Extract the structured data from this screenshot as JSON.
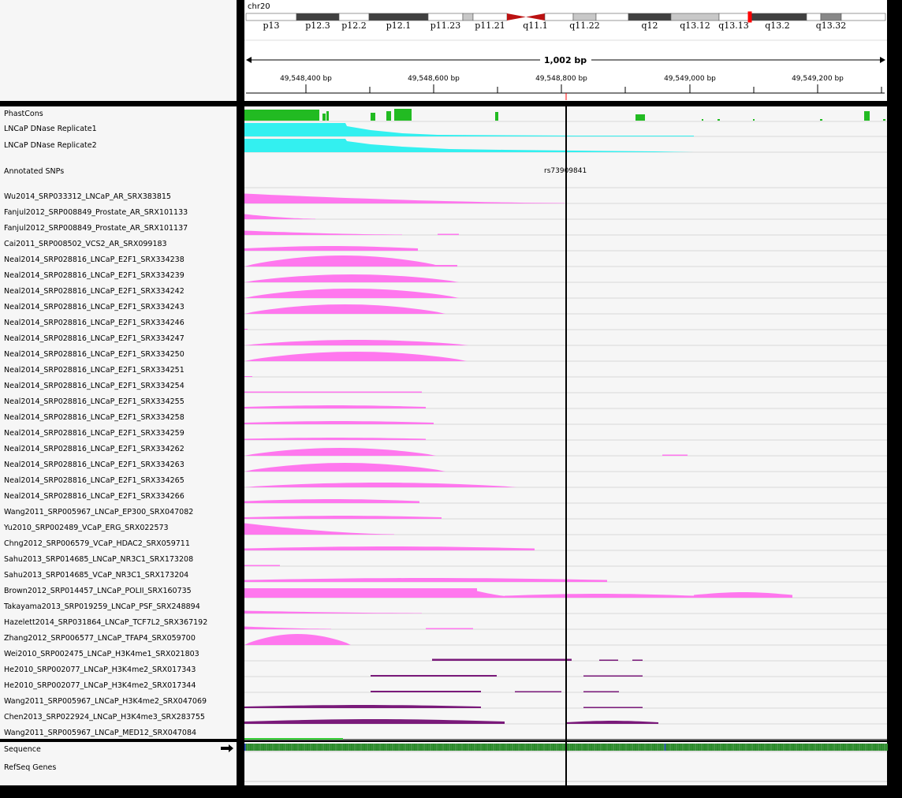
{
  "chromosome": "chr20",
  "bands": [
    {
      "label": "p13",
      "stain": "white"
    },
    {
      "label": "p12.3",
      "stain": "dark"
    },
    {
      "label": "p12.2",
      "stain": "white"
    },
    {
      "label": "p12.1",
      "stain": "dark"
    },
    {
      "label": "p11.23",
      "stain": "white"
    },
    {
      "label": "",
      "stain": "light"
    },
    {
      "label": "p11.21",
      "stain": "white"
    },
    {
      "label": "",
      "stain": "centromere"
    },
    {
      "label": "q11.1",
      "stain": "centromere"
    },
    {
      "label": "",
      "stain": "white"
    },
    {
      "label": "q11.22",
      "stain": "light"
    },
    {
      "label": "",
      "stain": "white"
    },
    {
      "label": "q12",
      "stain": "dark"
    },
    {
      "label": "q13.12",
      "stain": "light"
    },
    {
      "label": "q13.13",
      "stain": "white"
    },
    {
      "label": "q13.2",
      "stain": "dark"
    },
    {
      "label": "",
      "stain": "white"
    },
    {
      "label": "q13.32",
      "stain": "mid"
    },
    {
      "label": "",
      "stain": "white"
    }
  ],
  "span_label": "1,002 bp",
  "ruler_ticks": [
    "49,548,400 bp",
    "49,548,600 bp",
    "49,548,800 bp",
    "49,549,000 bp",
    "49,549,200 bp"
  ],
  "tracks": {
    "phastcons": "PhastCons",
    "dnase1": "LNCaP DNase Replicate1",
    "dnase2": "LNCaP DNase Replicate2",
    "snps": "Annotated SNPs",
    "snp_id": "rs73909841"
  },
  "chip_tracks": [
    "Wu2014_SRP033312_LNCaP_AR_SRX383815",
    "Fanjul2012_SRP008849_Prostate_AR_SRX101133",
    "Fanjul2012_SRP008849_Prostate_AR_SRX101137",
    "Cai2011_SRP008502_VCS2_AR_SRX099183",
    "Neal2014_SRP028816_LNCaP_E2F1_SRX334238",
    "Neal2014_SRP028816_LNCaP_E2F1_SRX334239",
    "Neal2014_SRP028816_LNCaP_E2F1_SRX334242",
    "Neal2014_SRP028816_LNCaP_E2F1_SRX334243",
    "Neal2014_SRP028816_LNCaP_E2F1_SRX334246",
    "Neal2014_SRP028816_LNCaP_E2F1_SRX334247",
    "Neal2014_SRP028816_LNCaP_E2F1_SRX334250",
    "Neal2014_SRP028816_LNCaP_E2F1_SRX334251",
    "Neal2014_SRP028816_LNCaP_E2F1_SRX334254",
    "Neal2014_SRP028816_LNCaP_E2F1_SRX334255",
    "Neal2014_SRP028816_LNCaP_E2F1_SRX334258",
    "Neal2014_SRP028816_LNCaP_E2F1_SRX334259",
    "Neal2014_SRP028816_LNCaP_E2F1_SRX334262",
    "Neal2014_SRP028816_LNCaP_E2F1_SRX334263",
    "Neal2014_SRP028816_LNCaP_E2F1_SRX334265",
    "Neal2014_SRP028816_LNCaP_E2F1_SRX334266",
    "Wang2011_SRP005967_LNCaP_EP300_SRX047082",
    "Yu2010_SRP002489_VCaP_ERG_SRX022573",
    "Chng2012_SRP006579_VCaP_HDAC2_SRX059711",
    "Sahu2013_SRP014685_LNCaP_NR3C1_SRX173208",
    "Sahu2013_SRP014685_VCaP_NR3C1_SRX173204",
    "Brown2012_SRP014457_LNCaP_POLII_SRX160735",
    "Takayama2013_SRP019259_LNCaP_PSF_SRX248894",
    "Hazelett2014_SRP031864_LNCaP_TCF7L2_SRX367192",
    "Zhang2012_SRP006577_LNCaP_TFAP4_SRX059700",
    "Wei2010_SRP002475_LNCaP_H3K4me1_SRX021803",
    "He2010_SRP002077_LNCaP_H3K4me2_SRX017343",
    "He2010_SRP002077_LNCaP_H3K4me2_SRX017344",
    "Wang2011_SRP005967_LNCaP_H3K4me2_SRX047069",
    "Chen2013_SRP022924_LNCaP_H3K4me3_SRX283755",
    "Wang2011_SRP005967_LNCaP_MED12_SRX047084"
  ],
  "sequence_label": "Sequence",
  "refseq_label": "RefSeq Genes",
  "colors": {
    "phastcons": "#22bb22",
    "dnase": "#33f0f0",
    "chip": "#ff77ee",
    "histone": "#7a1a7a",
    "med12": "#33cc33",
    "highlight": "#ff0000"
  }
}
